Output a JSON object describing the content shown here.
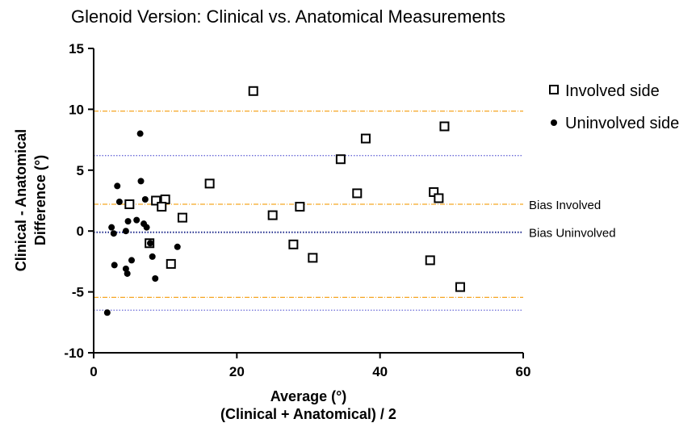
{
  "chart_data": {
    "type": "scatter",
    "title": "Glenoid Version: Clinical vs. Anatomical Measurements",
    "xlabel_line1": "Average (°)",
    "xlabel_line2": "(Clinical + Anatomical) / 2",
    "ylabel_line1": "Clinical - Anatomical",
    "ylabel_line2": "Difference (°)",
    "xlim": [
      0,
      60
    ],
    "ylim": [
      -10,
      15
    ],
    "x_ticks": [
      "0",
      "20",
      "40",
      "60"
    ],
    "y_ticks": [
      "15",
      "10",
      "5",
      "0",
      "-5",
      "-10"
    ],
    "legend_position": "top-right",
    "series": [
      {
        "name": "Involved side",
        "marker": "open-square",
        "color": "#000000",
        "points": [
          {
            "x": 22.3,
            "y": 11.5
          },
          {
            "x": 49.0,
            "y": 8.6
          },
          {
            "x": 38.0,
            "y": 7.6
          },
          {
            "x": 34.5,
            "y": 5.9
          },
          {
            "x": 16.2,
            "y": 3.9
          },
          {
            "x": 36.8,
            "y": 3.1
          },
          {
            "x": 47.5,
            "y": 3.2
          },
          {
            "x": 48.2,
            "y": 2.7
          },
          {
            "x": 10.0,
            "y": 2.6
          },
          {
            "x": 8.7,
            "y": 2.5
          },
          {
            "x": 5.0,
            "y": 2.2
          },
          {
            "x": 9.5,
            "y": 2.0
          },
          {
            "x": 28.8,
            "y": 2.0
          },
          {
            "x": 25.0,
            "y": 1.3
          },
          {
            "x": 12.4,
            "y": 1.1
          },
          {
            "x": 7.8,
            "y": -1.0
          },
          {
            "x": 27.9,
            "y": -1.1
          },
          {
            "x": 30.6,
            "y": -2.2
          },
          {
            "x": 47.0,
            "y": -2.4
          },
          {
            "x": 10.8,
            "y": -2.7
          },
          {
            "x": 51.2,
            "y": -4.6
          }
        ]
      },
      {
        "name": "Uninvolved side",
        "marker": "filled-circle",
        "color": "#000000",
        "points": [
          {
            "x": 6.5,
            "y": 8.0
          },
          {
            "x": 6.6,
            "y": 4.1
          },
          {
            "x": 3.3,
            "y": 3.7
          },
          {
            "x": 7.2,
            "y": 2.6
          },
          {
            "x": 3.6,
            "y": 2.4
          },
          {
            "x": 4.8,
            "y": 0.8
          },
          {
            "x": 6.0,
            "y": 0.9
          },
          {
            "x": 7.0,
            "y": 0.6
          },
          {
            "x": 7.4,
            "y": 0.3
          },
          {
            "x": 2.5,
            "y": 0.3
          },
          {
            "x": 4.5,
            "y": 0.0
          },
          {
            "x": 2.8,
            "y": -0.2
          },
          {
            "x": 7.9,
            "y": -1.0
          },
          {
            "x": 11.7,
            "y": -1.3
          },
          {
            "x": 8.2,
            "y": -2.1
          },
          {
            "x": 5.3,
            "y": -2.4
          },
          {
            "x": 2.9,
            "y": -2.8
          },
          {
            "x": 4.5,
            "y": -3.1
          },
          {
            "x": 4.7,
            "y": -3.5
          },
          {
            "x": 8.6,
            "y": -3.9
          },
          {
            "x": 1.9,
            "y": -6.7
          }
        ]
      }
    ],
    "reference_lines": [
      {
        "y": 9.85,
        "color": "#f5a623",
        "style": "dash-dot",
        "label": ""
      },
      {
        "y": 2.2,
        "color": "#f5a623",
        "style": "dash-dot",
        "label": "Bias Involved"
      },
      {
        "y": -5.45,
        "color": "#f5a623",
        "style": "dash-dot",
        "label": ""
      },
      {
        "y": 6.2,
        "color": "#6b6bd8",
        "style": "dotted",
        "label": ""
      },
      {
        "y": -0.1,
        "color": "#1e2a8c",
        "style": "dotted",
        "label": "Bias Uninvolved"
      },
      {
        "y": -6.5,
        "color": "#6b6bd8",
        "style": "dotted",
        "label": ""
      }
    ]
  }
}
